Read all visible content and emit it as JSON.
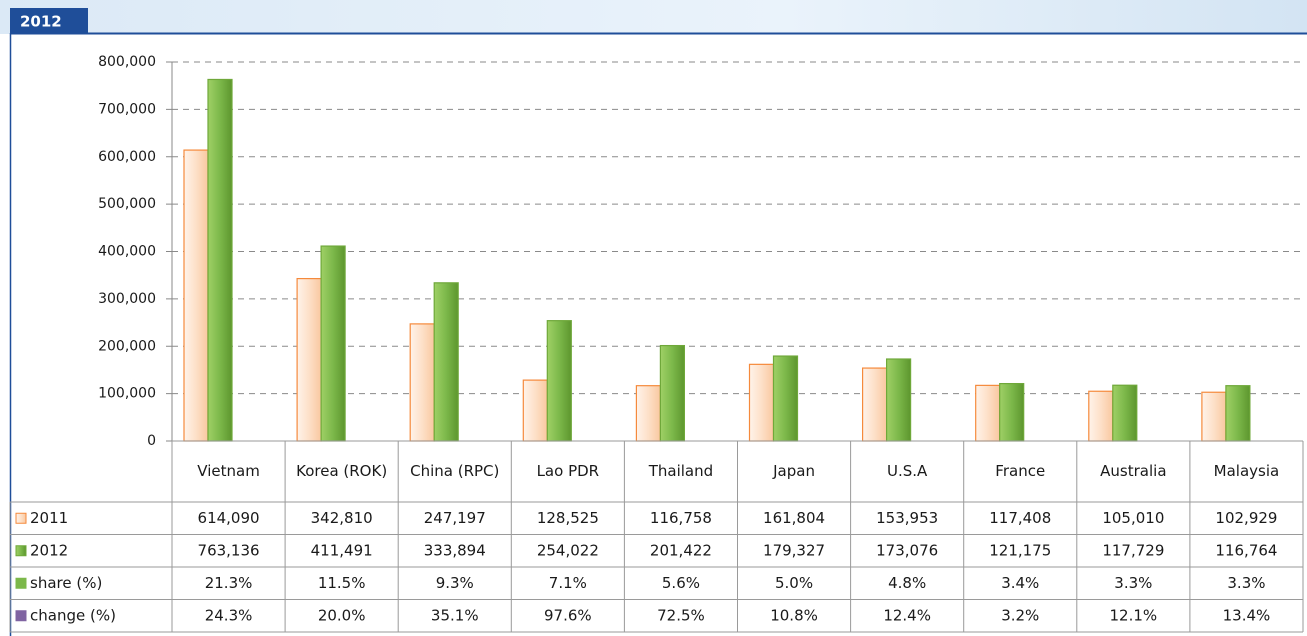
{
  "chart_data": {
    "type": "bar",
    "title": "2012",
    "categories": [
      "Vietnam",
      "Korea (ROK)",
      "China (RPC)",
      "Lao PDR",
      "Thailand",
      "Japan",
      "U.S.A",
      "France",
      "Australia",
      "Malaysia"
    ],
    "series": [
      {
        "name": "2011",
        "color": "#f58a3c",
        "values": [
          614090,
          342810,
          247197,
          128525,
          116758,
          161804,
          153953,
          117408,
          105010,
          102929
        ],
        "value_labels": [
          "614,090",
          "342,810",
          "247,197",
          "128,525",
          "116,758",
          "161,804",
          "153,953",
          "117,408",
          "105,010",
          "102,929"
        ]
      },
      {
        "name": "2012",
        "color": "#6fa83a",
        "values": [
          763136,
          411491,
          333894,
          254022,
          201422,
          179327,
          173076,
          121175,
          117729,
          116764
        ],
        "value_labels": [
          "763,136",
          "411,491",
          "333,894",
          "254,022",
          "201,422",
          "179,327",
          "173,076",
          "121,175",
          "117,729",
          "116,764"
        ]
      }
    ],
    "table_rows": [
      {
        "name": "share (%)",
        "color": "#7cb84a",
        "values": [
          21.3,
          11.5,
          9.3,
          7.1,
          5.6,
          5.0,
          4.8,
          3.4,
          3.3,
          3.3
        ],
        "value_labels": [
          "21.3%",
          "11.5%",
          "9.3%",
          "7.1%",
          "5.6%",
          "5.0%",
          "4.8%",
          "3.4%",
          "3.3%",
          "3.3%"
        ]
      },
      {
        "name": "change (%)",
        "color": "#8064a2",
        "values": [
          24.3,
          20.0,
          35.1,
          97.6,
          72.5,
          10.8,
          12.4,
          3.2,
          12.1,
          13.4
        ],
        "value_labels": [
          "24.3%",
          "20.0%",
          "35.1%",
          "97.6%",
          "72.5%",
          "10.8%",
          "12.4%",
          "3.2%",
          "12.1%",
          "13.4%"
        ]
      }
    ],
    "ylim": [
      0,
      800000
    ],
    "yticks": [
      0,
      {
        "value": 100000,
        "label": "100,000"
      },
      {
        "value": 200000,
        "label": "200,000"
      },
      {
        "value": 300000,
        "label": "300,000"
      },
      {
        "value": 400000,
        "label": "400,000"
      },
      {
        "value": 500000,
        "label": "500,000"
      },
      {
        "value": 600000,
        "label": "600,000"
      },
      {
        "value": 700000,
        "label": "700,000"
      },
      {
        "value": 800000,
        "label": "800,000"
      }
    ],
    "grid": true
  }
}
